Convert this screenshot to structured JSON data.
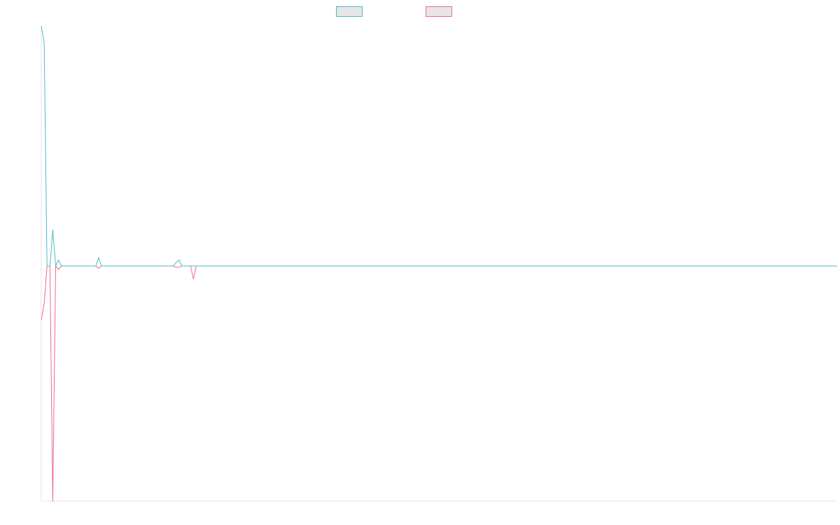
{
  "chart_data": {
    "type": "line",
    "title": "",
    "xlabel": "",
    "ylabel": "",
    "legend_position": "top",
    "grid": false,
    "ylim": [
      -1,
      1
    ],
    "series": [
      {
        "color": "#4bbcc4",
        "values": [
          1,
          0.93,
          0,
          0,
          0.15,
          0,
          0.025,
          0,
          0,
          0,
          0,
          0,
          0,
          0,
          0,
          0,
          0,
          0,
          0,
          0,
          0.035,
          0,
          0,
          0,
          0,
          0,
          0,
          0,
          0,
          0,
          0,
          0,
          0,
          0,
          0,
          0,
          0,
          0,
          0,
          0,
          0,
          0,
          0,
          0,
          0,
          0,
          0,
          0.015,
          0.025,
          0,
          0,
          0,
          0,
          0,
          0
        ]
      },
      {
        "color": "#f06a86",
        "values": [
          -0.23,
          -0.16,
          0,
          0,
          -1,
          0,
          -0.015,
          0,
          0,
          0,
          0,
          0,
          0,
          0,
          0,
          0,
          0,
          0,
          0,
          0,
          -0.01,
          0,
          0,
          0,
          0,
          0,
          0,
          0,
          0,
          0,
          0,
          0,
          0,
          0,
          0,
          0,
          0,
          0,
          0,
          0,
          0,
          0,
          0,
          0,
          0,
          0,
          0,
          -0.005,
          -0.005,
          0,
          0,
          0,
          0,
          -0.055,
          0
        ]
      }
    ]
  }
}
